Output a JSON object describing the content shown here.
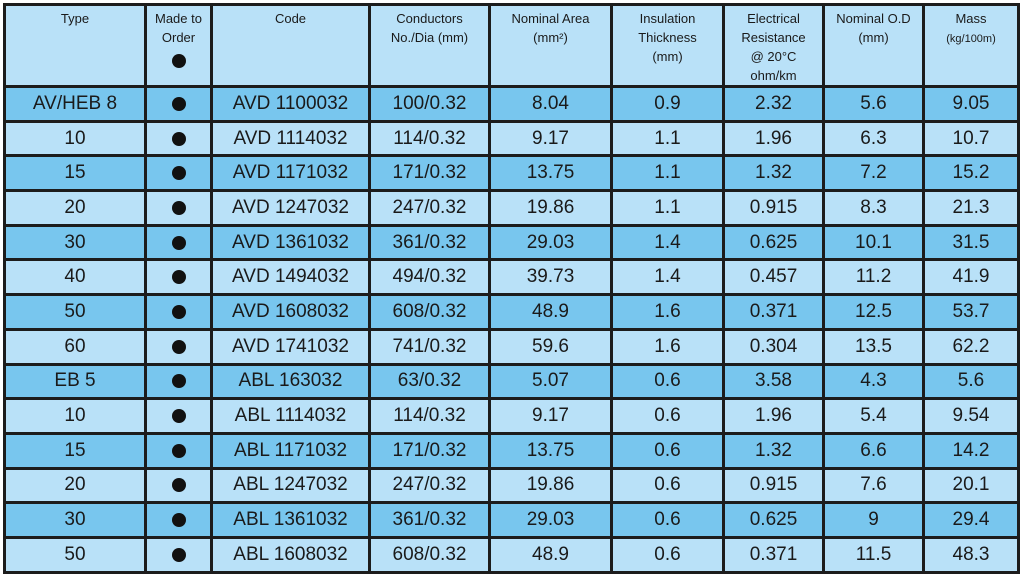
{
  "headers": {
    "type": "Type",
    "made_to_order_1": "Made to",
    "made_to_order_2": "Order",
    "code": "Code",
    "conductors_1": "Conductors",
    "conductors_2": "No./Dia (mm)",
    "area_1": "Nominal Area",
    "area_2": "(mm²)",
    "insulation_1": "Insulation",
    "insulation_2": "Thickness",
    "insulation_3": "(mm)",
    "resistance_1": "Electrical",
    "resistance_2": "Resistance",
    "resistance_3": "@ 20°C",
    "resistance_4": "ohm/km",
    "od_1": "Nominal O.D",
    "od_2": "(mm)",
    "mass_1": "Mass",
    "mass_2": "(kg/100m)"
  },
  "colors": {
    "row_dark": "#78c6ee",
    "row_light": "#b9e1f8",
    "border": "#1c1c1c"
  },
  "rows": [
    {
      "type": "AV/HEB 8",
      "mto": true,
      "code": "AVD 1100032",
      "cond": "100/0.32",
      "area": "8.04",
      "ins": "0.9",
      "res": "2.32",
      "od": "5.6",
      "mass": "9.05"
    },
    {
      "type": "10",
      "mto": true,
      "code": "AVD 1114032",
      "cond": "114/0.32",
      "area": "9.17",
      "ins": "1.1",
      "res": "1.96",
      "od": "6.3",
      "mass": "10.7"
    },
    {
      "type": "15",
      "mto": true,
      "code": "AVD 1171032",
      "cond": "171/0.32",
      "area": "13.75",
      "ins": "1.1",
      "res": "1.32",
      "od": "7.2",
      "mass": "15.2"
    },
    {
      "type": "20",
      "mto": true,
      "code": "AVD 1247032",
      "cond": "247/0.32",
      "area": "19.86",
      "ins": "1.1",
      "res": "0.915",
      "od": "8.3",
      "mass": "21.3"
    },
    {
      "type": "30",
      "mto": true,
      "code": "AVD 1361032",
      "cond": "361/0.32",
      "area": "29.03",
      "ins": "1.4",
      "res": "0.625",
      "od": "10.1",
      "mass": "31.5"
    },
    {
      "type": "40",
      "mto": true,
      "code": "AVD 1494032",
      "cond": "494/0.32",
      "area": "39.73",
      "ins": "1.4",
      "res": "0.457",
      "od": "11.2",
      "mass": "41.9"
    },
    {
      "type": "50",
      "mto": true,
      "code": "AVD 1608032",
      "cond": "608/0.32",
      "area": "48.9",
      "ins": "1.6",
      "res": "0.371",
      "od": "12.5",
      "mass": "53.7"
    },
    {
      "type": "60",
      "mto": true,
      "code": "AVD 1741032",
      "cond": "741/0.32",
      "area": "59.6",
      "ins": "1.6",
      "res": "0.304",
      "od": "13.5",
      "mass": "62.2"
    },
    {
      "type": "EB 5",
      "mto": true,
      "code": "ABL 163032",
      "cond": "63/0.32",
      "area": "5.07",
      "ins": "0.6",
      "res": "3.58",
      "od": "4.3",
      "mass": "5.6"
    },
    {
      "type": "10",
      "mto": true,
      "code": "ABL 1114032",
      "cond": "114/0.32",
      "area": "9.17",
      "ins": "0.6",
      "res": "1.96",
      "od": "5.4",
      "mass": "9.54"
    },
    {
      "type": "15",
      "mto": true,
      "code": "ABL 1171032",
      "cond": "171/0.32",
      "area": "13.75",
      "ins": "0.6",
      "res": "1.32",
      "od": "6.6",
      "mass": "14.2"
    },
    {
      "type": "20",
      "mto": true,
      "code": "ABL 1247032",
      "cond": "247/0.32",
      "area": "19.86",
      "ins": "0.6",
      "res": "0.915",
      "od": "7.6",
      "mass": "20.1"
    },
    {
      "type": "30",
      "mto": true,
      "code": "ABL 1361032",
      "cond": "361/0.32",
      "area": "29.03",
      "ins": "0.6",
      "res": "0.625",
      "od": "9",
      "mass": "29.4"
    },
    {
      "type": "50",
      "mto": true,
      "code": "ABL 1608032",
      "cond": "608/0.32",
      "area": "48.9",
      "ins": "0.6",
      "res": "0.371",
      "od": "11.5",
      "mass": "48.3"
    }
  ]
}
